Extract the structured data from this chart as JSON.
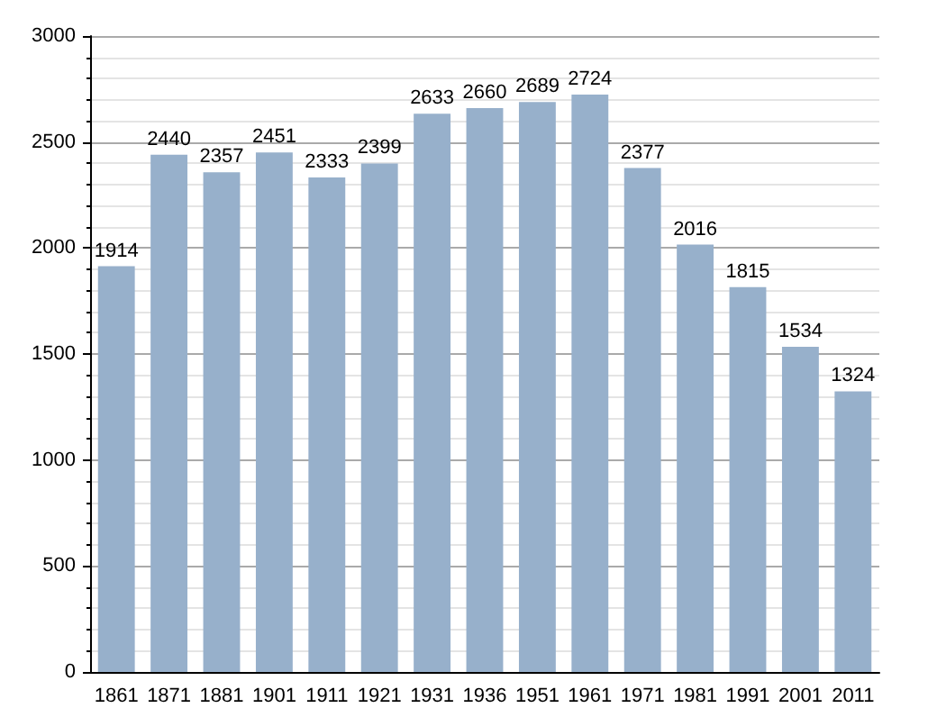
{
  "chart_data": {
    "type": "bar",
    "categories": [
      "1861",
      "1871",
      "1881",
      "1901",
      "1911",
      "1921",
      "1931",
      "1936",
      "1951",
      "1961",
      "1971",
      "1981",
      "1991",
      "2001",
      "2011"
    ],
    "values": [
      1914,
      2440,
      2357,
      2451,
      2333,
      2399,
      2633,
      2660,
      2689,
      2724,
      2377,
      2016,
      1815,
      1534,
      1324
    ],
    "color": "#97b0cb",
    "ylim": [
      0,
      3000
    ],
    "yticks": [
      0,
      500,
      1000,
      1500,
      2000,
      2500,
      3000
    ],
    "grid": "y",
    "data_labels": true
  }
}
